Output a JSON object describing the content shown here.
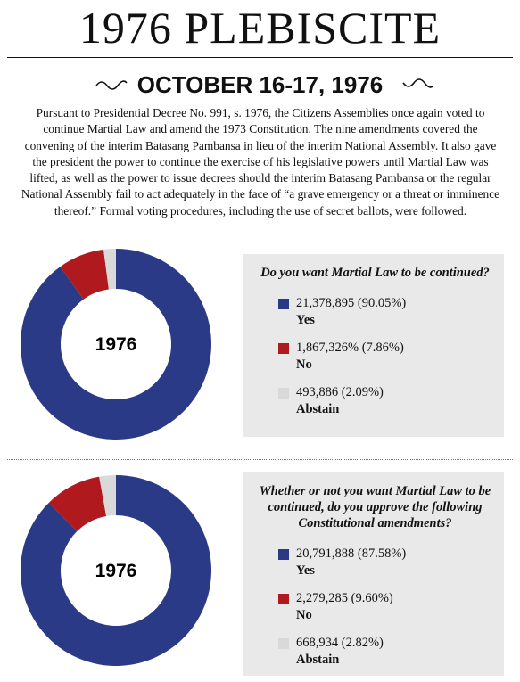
{
  "header": {
    "title": "1976 PLEBISCITE",
    "date": "OCTOBER 16-17, 1976",
    "intro": "Pursuant to Presidential Decree No. 991, s. 1976, the Citizens Assemblies once again voted to continue Martial Law and amend the 1973 Constitution. The nine amendments covered the convening of the interim Batasang Pambansa in lieu of the interim National Assembly. It also gave the president the power to continue the exercise of his legislative powers until Martial Law was lifted, as well as the power to issue decrees should the interim Batasang Pambansa or the regular National Assembly fail to act adequately in the face of “a grave emergency or a threat or imminence thereof.” Formal voting procedures, including the use of secret ballots, were followed."
  },
  "chart_data": [
    {
      "type": "pie",
      "center_label": "1976",
      "title": "Do you want Martial Law to be continued?",
      "categories": [
        "Yes",
        "No",
        "Abstain"
      ],
      "values": [
        21378895,
        1867326,
        493886
      ],
      "value_labels": [
        "21,378,895 (90.05%)",
        "1,867,326% (7.86%)",
        "493,886 (2.09%)"
      ],
      "colors": [
        "#2b3a86",
        "#b01a1e",
        "#d9d9d9"
      ]
    },
    {
      "type": "pie",
      "center_label": "1976",
      "title": "Whether or not you want Martial Law to be continued, do you approve the following Constitutional amendments?",
      "categories": [
        "Yes",
        "No",
        "Abstain"
      ],
      "values": [
        20791888,
        2279285,
        668934
      ],
      "value_labels": [
        "20,791,888 (87.58%)",
        "2,279,285 (9.60%)",
        "668,934 (2.82%)"
      ],
      "colors": [
        "#2b3a86",
        "#b01a1e",
        "#d9d9d9"
      ]
    }
  ]
}
